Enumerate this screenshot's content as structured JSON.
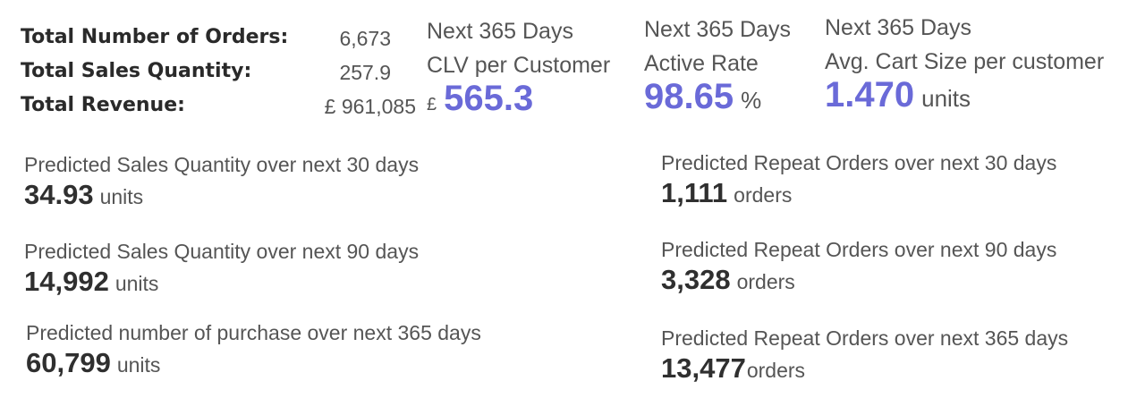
{
  "summary": {
    "rows": [
      {
        "label": "Total Number of Orders:",
        "value": "6,673"
      },
      {
        "label": "Total Sales Quantity:",
        "value": "257.9"
      },
      {
        "label": "Total Revenue:",
        "value": "£ 961,085"
      }
    ]
  },
  "kpis": {
    "clv": {
      "line1": "Next 365 Days",
      "line2": "CLV per Customer",
      "currency": "£",
      "value": "565.3"
    },
    "active_rate": {
      "line1": "Next 365 Days",
      "line2": "Active Rate",
      "value": "98.65",
      "unit": "%"
    },
    "cart_size": {
      "line1": "Next 365 Days",
      "line2": "Avg. Cart Size per customer",
      "value": "1.470",
      "unit": "units"
    }
  },
  "predictions_left": [
    {
      "caption": "Predicted Sales Quantity over next 30 days",
      "value": "34.93",
      "unit": "units"
    },
    {
      "caption": "Predicted Sales Quantity over next 90 days",
      "value": "14,992",
      "unit": "units"
    },
    {
      "caption": "Predicted number of purchase over next 365 days",
      "value": "60,799",
      "unit": "units"
    }
  ],
  "predictions_right": [
    {
      "caption": "Predicted Repeat Orders over next 30 days",
      "value": "1,111",
      "unit": "orders"
    },
    {
      "caption": "Predicted Repeat Orders over next 90 days",
      "value": "3,328",
      "unit": "orders"
    },
    {
      "caption": "Predicted Repeat Orders over next 365 days",
      "value": "13,477",
      "unit": "orders"
    }
  ],
  "colors": {
    "accent": "#6a6ad8",
    "text": "#555555",
    "heading": "#2a2a2a"
  }
}
